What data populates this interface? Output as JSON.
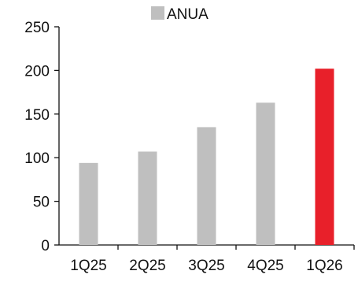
{
  "chart_data": {
    "type": "bar",
    "categories": [
      "1Q25",
      "2Q25",
      "3Q25",
      "4Q25",
      "1Q26"
    ],
    "series": [
      {
        "name": "ANUA",
        "values": [
          94,
          107,
          135,
          163,
          202
        ]
      }
    ],
    "highlight_index": 4,
    "colors": {
      "default": "#bfbfbf",
      "highlight": "#e8202a",
      "axis": "#111111"
    },
    "ylim": [
      0,
      250
    ],
    "yticks": [
      0,
      50,
      100,
      150,
      200,
      250
    ],
    "grid": false,
    "legend_position": "top-center"
  }
}
